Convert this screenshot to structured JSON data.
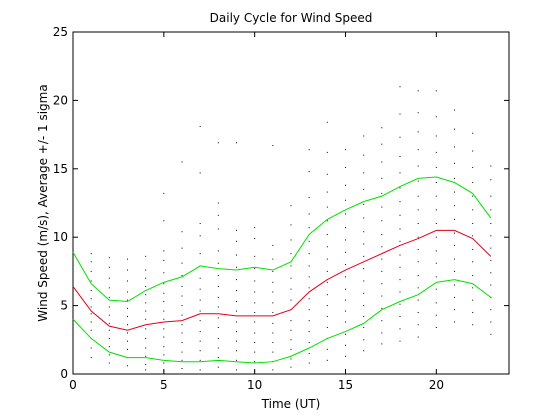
{
  "chart_data": {
    "type": "line",
    "title": "Daily Cycle for Wind Speed",
    "xlabel": "Time (UT)",
    "ylabel": "Wind Speed (m/s), Average +/- 1 sigma",
    "xlim": [
      0,
      24
    ],
    "ylim": [
      0,
      25
    ],
    "xticks": [
      0,
      5,
      10,
      15,
      20
    ],
    "yticks": [
      0,
      5,
      10,
      15,
      20,
      25
    ],
    "grid": false,
    "x": [
      0,
      1,
      2,
      3,
      4,
      5,
      6,
      7,
      8,
      9,
      10,
      11,
      12,
      13,
      14,
      15,
      16,
      17,
      18,
      19,
      20,
      21,
      22,
      23
    ],
    "series": [
      {
        "role": "average",
        "color": "#e0001b",
        "values": [
          6.4,
          4.6,
          3.5,
          3.2,
          3.6,
          3.8,
          3.9,
          4.4,
          4.4,
          4.25,
          4.25,
          4.25,
          4.7,
          6.0,
          6.9,
          7.6,
          8.2,
          8.8,
          9.4,
          9.9,
          10.5,
          10.5,
          9.9,
          8.6
        ]
      },
      {
        "role": "average + 1 sigma",
        "color": "#00e000",
        "values": [
          8.9,
          6.6,
          5.4,
          5.3,
          6.1,
          6.7,
          7.1,
          7.9,
          7.7,
          7.6,
          7.8,
          7.6,
          8.2,
          10.2,
          11.3,
          12.0,
          12.6,
          13.0,
          13.7,
          14.3,
          14.4,
          14.0,
          13.2,
          11.4
        ]
      },
      {
        "role": "average - 1 sigma",
        "color": "#00e000",
        "values": [
          4.0,
          2.6,
          1.6,
          1.2,
          1.2,
          1.0,
          0.9,
          0.9,
          1.0,
          0.9,
          0.8,
          0.9,
          1.3,
          1.9,
          2.6,
          3.1,
          3.7,
          4.7,
          5.3,
          5.8,
          6.7,
          6.9,
          6.6,
          5.6
        ]
      }
    ],
    "scatter": {
      "color": "#000000",
      "hours": [
        0,
        1,
        2,
        3,
        4,
        5,
        6,
        7,
        8,
        9,
        10,
        11,
        12,
        13,
        14,
        15,
        16,
        17,
        18,
        19,
        20,
        21,
        22,
        23
      ],
      "points": [
        [
          3.4,
          4.0,
          4.6,
          5.0,
          5.5,
          6.0,
          6.4,
          6.8,
          7.3,
          7.8,
          8.3,
          8.8
        ],
        [
          1.2,
          1.9,
          2.6,
          3.2,
          3.8,
          4.4,
          4.9,
          5.5,
          6.1,
          6.8,
          7.5,
          8.2,
          8.8
        ],
        [
          0.8,
          1.4,
          2.0,
          2.6,
          3.2,
          3.7,
          4.3,
          4.9,
          5.6,
          6.3,
          7.0,
          7.8,
          8.5
        ],
        [
          0.6,
          1.2,
          1.8,
          2.4,
          3.0,
          3.6,
          4.2,
          4.8,
          5.4,
          6.0,
          6.8,
          7.6,
          8.4
        ],
        [
          0.3,
          0.7,
          1.3,
          1.9,
          2.6,
          3.3,
          4.0,
          4.6,
          5.2,
          5.8,
          6.4,
          7.0,
          7.6,
          8.6
        ],
        [
          0.2,
          0.8,
          1.4,
          2.0,
          2.7,
          3.3,
          4.0,
          4.6,
          5.3,
          5.9,
          6.6,
          7.4,
          8.3,
          9.0,
          11.2,
          13.2
        ],
        [
          0.4,
          1.0,
          1.6,
          2.3,
          3.0,
          3.6,
          4.3,
          5.0,
          5.7,
          6.4,
          7.2,
          8.1,
          9.2,
          10.4,
          15.5
        ],
        [
          0.3,
          1.0,
          1.7,
          2.4,
          3.1,
          3.9,
          4.6,
          5.4,
          6.2,
          7.0,
          7.9,
          8.8,
          10.1,
          11.0,
          14.7,
          18.1
        ],
        [
          0.5,
          1.2,
          1.9,
          2.6,
          3.4,
          4.1,
          4.9,
          5.6,
          6.4,
          7.2,
          8.1,
          9.0,
          10.6,
          11.6,
          12.5,
          16.9
        ],
        [
          0.3,
          1.0,
          1.7,
          2.4,
          3.1,
          3.8,
          4.6,
          5.3,
          6.1,
          6.9,
          7.8,
          8.7,
          9.7,
          10.5,
          16.9
        ],
        [
          0.2,
          0.9,
          1.6,
          2.3,
          3.0,
          3.8,
          4.5,
          5.2,
          6.0,
          6.8,
          7.7,
          8.6,
          9.9,
          10.7
        ],
        [
          0.3,
          0.9,
          1.6,
          2.3,
          3.0,
          3.7,
          4.5,
          5.2,
          6.0,
          6.7,
          7.5,
          8.4,
          9.4,
          16.7
        ],
        [
          0.5,
          1.1,
          1.8,
          2.5,
          3.2,
          3.9,
          4.7,
          5.4,
          6.2,
          7.0,
          7.9,
          8.8,
          9.8,
          10.9,
          12.3
        ],
        [
          0.8,
          1.5,
          2.3,
          3.1,
          3.9,
          4.7,
          5.5,
          6.3,
          7.1,
          7.9,
          8.8,
          9.7,
          10.7,
          11.7,
          12.9,
          14.8,
          16.4
        ],
        [
          1.0,
          1.8,
          2.6,
          3.4,
          4.2,
          5.0,
          5.8,
          6.7,
          7.5,
          8.4,
          9.3,
          10.2,
          11.2,
          12.2,
          13.3,
          14.6,
          16.2,
          18.4
        ],
        [
          1.3,
          2.1,
          2.9,
          3.8,
          4.6,
          5.4,
          6.2,
          7.1,
          8.0,
          8.9,
          9.8,
          10.7,
          11.7,
          12.7,
          13.8,
          15.1,
          16.4
        ],
        [
          1.7,
          2.5,
          3.4,
          4.2,
          5.0,
          5.9,
          6.8,
          7.7,
          8.6,
          9.5,
          10.4,
          11.4,
          12.4,
          13.5,
          14.7,
          16.0,
          17.4
        ],
        [
          2.2,
          3.0,
          3.9,
          4.8,
          5.7,
          6.6,
          7.5,
          8.4,
          9.3,
          10.2,
          11.2,
          12.2,
          13.2,
          14.3,
          15.5,
          16.8,
          18.0
        ],
        [
          2.4,
          3.3,
          4.2,
          5.1,
          6.0,
          6.9,
          7.8,
          8.7,
          9.7,
          10.6,
          11.6,
          12.6,
          13.6,
          14.7,
          15.9,
          17.3,
          19.0,
          21.0
        ],
        [
          2.7,
          3.6,
          4.5,
          5.4,
          6.3,
          7.2,
          8.2,
          9.1,
          10.0,
          11.0,
          12.0,
          13.0,
          14.1,
          15.2,
          16.4,
          17.7,
          19.1,
          20.7
        ],
        [
          3.4,
          4.3,
          5.2,
          6.2,
          7.1,
          8.1,
          9.0,
          10.0,
          11.0,
          12.0,
          13.0,
          14.0,
          15.1,
          16.2,
          17.4,
          18.8,
          20.7
        ],
        [
          3.8,
          4.7,
          5.6,
          6.5,
          7.5,
          8.4,
          9.4,
          10.3,
          11.3,
          12.3,
          13.3,
          14.3,
          15.4,
          16.6,
          17.9,
          19.3
        ],
        [
          3.6,
          4.5,
          5.4,
          6.3,
          7.2,
          8.2,
          9.1,
          10.1,
          11.0,
          12.0,
          13.0,
          14.0,
          15.1,
          16.3,
          17.6
        ],
        [
          2.9,
          3.8,
          4.7,
          5.6,
          6.5,
          7.4,
          8.3,
          9.2,
          10.1,
          11.0,
          12.0,
          13.0,
          14.2,
          15.2
        ]
      ]
    }
  }
}
